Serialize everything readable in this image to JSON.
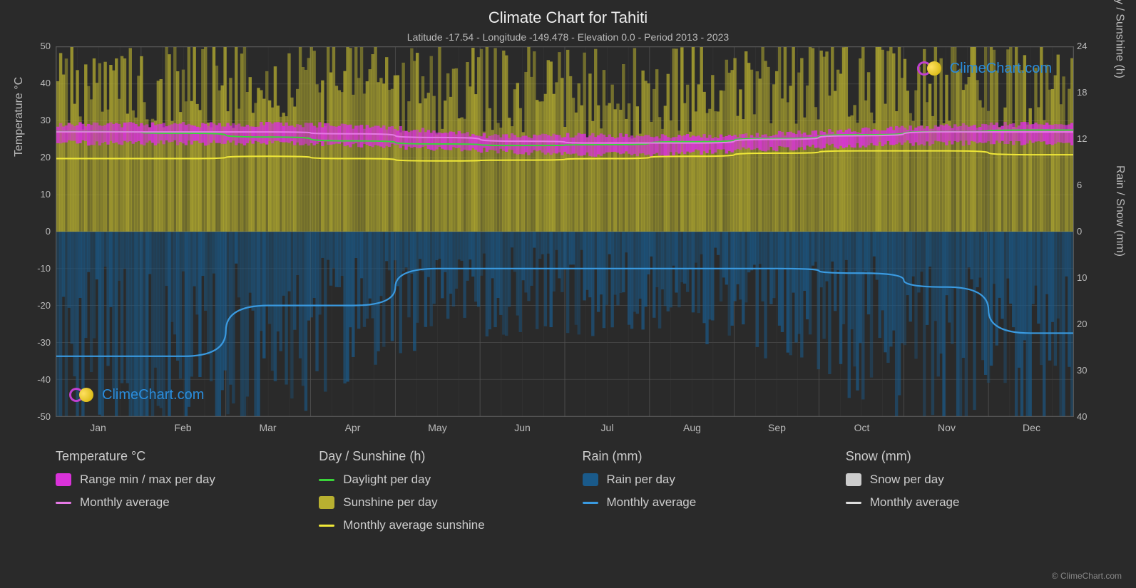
{
  "title": "Climate Chart for Tahiti",
  "subtitle": "Latitude -17.54 - Longitude -149.478 - Elevation 0.0 - Period 2013 - 2023",
  "axis_left_label": "Temperature °C",
  "axis_right_top_label": "Day / Sunshine (h)",
  "axis_right_bottom_label": "Rain / Snow (mm)",
  "watermark_text": "ClimeChart.com",
  "copyright": "© ClimeChart.com",
  "colors": {
    "background": "#2a2a2a",
    "grid": "#555555",
    "grid_minor": "#404040",
    "text": "#cccccc",
    "temp_range": "#d932d9",
    "temp_avg": "#e67ae6",
    "daylight": "#3ad43a",
    "sunshine_fill": "#b8b030",
    "sunshine_avg": "#f0e838",
    "rain_fill": "#1a5a8a",
    "rain_avg": "#3a9ae0",
    "snow_fill": "#cccccc",
    "snow_avg": "#dddddd"
  },
  "left_axis": {
    "min": -50,
    "max": 50,
    "ticks": [
      50,
      40,
      30,
      20,
      10,
      0,
      -10,
      -20,
      -30,
      -40,
      -50
    ]
  },
  "right_top_axis": {
    "min": 0,
    "max": 24,
    "ticks": [
      24,
      18,
      12,
      6,
      0
    ]
  },
  "right_bottom_axis": {
    "min": 0,
    "max": 40,
    "ticks": [
      0,
      10,
      20,
      30,
      40
    ]
  },
  "months": [
    "Jan",
    "Feb",
    "Mar",
    "Apr",
    "May",
    "Jun",
    "Jul",
    "Aug",
    "Sep",
    "Oct",
    "Nov",
    "Dec"
  ],
  "temp_max": [
    29,
    29,
    29,
    29,
    28,
    26,
    26,
    26,
    26,
    27,
    28,
    29
  ],
  "temp_min": [
    24,
    24,
    24,
    24,
    23,
    22,
    21,
    21,
    22,
    23,
    24,
    24
  ],
  "temp_avg": [
    27,
    27,
    27,
    26.5,
    25.5,
    24.5,
    24,
    24,
    25,
    26,
    27,
    27
  ],
  "daylight": [
    13,
    12.8,
    12.3,
    11.8,
    11.4,
    11.2,
    11.3,
    11.7,
    12.1,
    12.6,
    13,
    13.2
  ],
  "sunshine_fill_max": [
    24,
    24,
    24,
    24,
    23,
    22,
    22,
    22,
    23,
    24,
    24,
    24
  ],
  "sunshine_avg": [
    9.5,
    9.5,
    9.8,
    9.5,
    9.2,
    9.3,
    9.5,
    9.8,
    10.2,
    10.5,
    10.5,
    10
  ],
  "rain_fill_max": [
    50,
    50,
    42,
    35,
    25,
    20,
    20,
    20,
    22,
    28,
    38,
    50
  ],
  "rain_avg": [
    27,
    27,
    16,
    16,
    8,
    8,
    8,
    8,
    8,
    9,
    12,
    22
  ],
  "legend": {
    "temp": {
      "header": "Temperature °C",
      "range": "Range min / max per day",
      "avg": "Monthly average"
    },
    "day": {
      "header": "Day / Sunshine (h)",
      "daylight": "Daylight per day",
      "sunshine": "Sunshine per day",
      "avg": "Monthly average sunshine"
    },
    "rain": {
      "header": "Rain (mm)",
      "perday": "Rain per day",
      "avg": "Monthly average"
    },
    "snow": {
      "header": "Snow (mm)",
      "perday": "Snow per day",
      "avg": "Monthly average"
    }
  }
}
